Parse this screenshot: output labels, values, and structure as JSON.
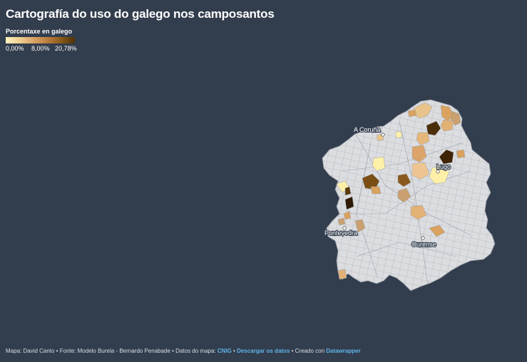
{
  "title": "Cartografía do uso do galego nos camposantos",
  "legend": {
    "title": "Porcentaxe en galego",
    "ticks": [
      "0,00%",
      "8,00%",
      "20,78%"
    ],
    "colors": [
      "#fef3c0",
      "#f0cf92",
      "#d8a466",
      "#b87a3a",
      "#8a5a1c",
      "#4d3208"
    ]
  },
  "map": {
    "base_color": "#dcdde0",
    "border_color": "#9aa0a8",
    "cities": [
      {
        "name": "A Coruña"
      },
      {
        "name": "Lugo"
      },
      {
        "name": "Pontevedra"
      },
      {
        "name": "Ourense"
      }
    ]
  },
  "footer": {
    "text1": "Mapa: David Canto • Fonte: Modelo Burela - Bernardo Penabade • Datos do mapa: ",
    "link1": "CNIG",
    "sep": " • ",
    "link2": "Descargar os datos",
    "text2": " • Creado con ",
    "link3": "Datawrapper"
  }
}
